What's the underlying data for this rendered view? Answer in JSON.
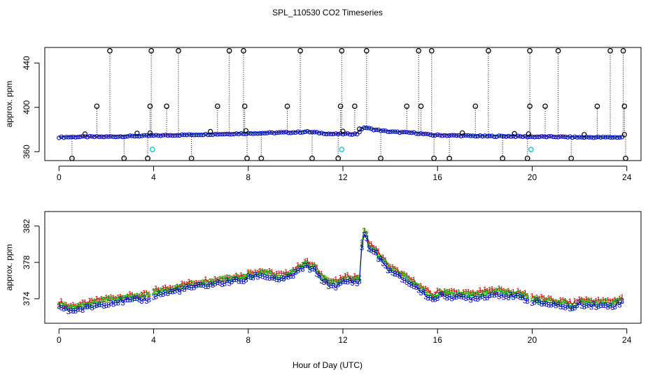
{
  "title": "SPL_110530  CO2 Timeseries",
  "xlabel": "Hour of Day (UTC)",
  "colors": {
    "hourly_1": "#cc0000",
    "hourly_2": "#00cc00",
    "hourly_3": "#0000cc",
    "cyan": "#00cccc",
    "black": "#000000"
  },
  "chart_data": [
    {
      "type": "scatter",
      "panel": "top",
      "title": "SPL_110530  CO2 Timeseries",
      "xlabel": "",
      "ylabel": "approx. ppm",
      "xlim": [
        -0.6,
        24.6
      ],
      "ylim": [
        352,
        454
      ],
      "x_ticks": [
        0,
        4,
        8,
        12,
        16,
        20,
        24
      ],
      "y_ticks": [
        360,
        400,
        440
      ],
      "baseline": [
        [
          0,
          373
        ],
        [
          1,
          373.5
        ],
        [
          2,
          373.5
        ],
        [
          3,
          374
        ],
        [
          4,
          374.5
        ],
        [
          5,
          375
        ],
        [
          6,
          375.5
        ],
        [
          7,
          376
        ],
        [
          8,
          376.5
        ],
        [
          9,
          377
        ],
        [
          10,
          377.5
        ],
        [
          10.5,
          378
        ],
        [
          11,
          377
        ],
        [
          11.5,
          376
        ],
        [
          12,
          376
        ],
        [
          12.6,
          376
        ],
        [
          12.9,
          382
        ],
        [
          13.3,
          380
        ],
        [
          14,
          378
        ],
        [
          15,
          377
        ],
        [
          15.8,
          375
        ],
        [
          17,
          374.5
        ],
        [
          18,
          374
        ],
        [
          19,
          374
        ],
        [
          20,
          373.5
        ],
        [
          21,
          373.5
        ],
        [
          22,
          373
        ],
        [
          23,
          373
        ],
        [
          23.8,
          373
        ]
      ],
      "spikes_high": [
        2.15,
        3.9,
        5.05,
        7.2,
        7.8,
        10.2,
        11.95,
        13.0,
        15.2,
        15.75,
        18.15,
        19.9,
        21.1,
        23.3,
        23.85
      ],
      "spikes_mid": [
        1.6,
        3.85,
        4.55,
        6.7,
        7.85,
        9.65,
        11.9,
        12.5,
        14.7,
        15.3,
        17.6,
        19.9,
        20.55,
        22.75,
        23.9
      ],
      "spikes_low": [
        0.55,
        2.75,
        3.75,
        5.6,
        7.95,
        8.55,
        10.7,
        11.8,
        13.6,
        15.85,
        16.5,
        18.75,
        19.8,
        21.65,
        23.95
      ],
      "points_small": [
        1.1,
        3.3,
        3.85,
        6.4,
        7.9,
        12.0,
        12.7,
        17.05,
        19.25,
        19.85,
        22.2,
        23.9
      ],
      "cyan_points": [
        [
          3.95,
          362
        ],
        [
          11.95,
          362
        ],
        [
          19.95,
          362
        ]
      ],
      "high_value": 451,
      "mid_value": 401,
      "low_value": 354
    },
    {
      "type": "line",
      "panel": "bottom",
      "xlabel": "Hour of Day (UTC)",
      "ylabel": "approx. ppm",
      "xlim": [
        -0.6,
        24.6
      ],
      "ylim": [
        371.3,
        383.6
      ],
      "x_ticks": [
        0,
        4,
        8,
        12,
        16,
        20,
        24
      ],
      "y_ticks": [
        374,
        378,
        382
      ],
      "series": [
        {
          "name": "1",
          "symbol": "1",
          "color": "#cc0000",
          "offset": 0.55
        },
        {
          "name": "2",
          "symbol": "2",
          "color": "#00cc00",
          "offset": 0.3
        },
        {
          "name": "3",
          "symbol": "3",
          "color": "#0000cc",
          "offset": 0
        }
      ],
      "profile": [
        [
          0.05,
          373.1
        ],
        [
          0.4,
          372.7
        ],
        [
          0.8,
          372.8
        ],
        [
          1.2,
          373
        ],
        [
          1.6,
          373.3
        ],
        [
          2,
          373.5
        ],
        [
          2.5,
          373.7
        ],
        [
          3,
          373.8
        ],
        [
          3.5,
          373.9
        ],
        [
          3.85,
          374
        ],
        [
          4.05,
          374.4
        ],
        [
          4.5,
          374.6
        ],
        [
          5,
          374.9
        ],
        [
          5.5,
          375.2
        ],
        [
          6,
          375.4
        ],
        [
          6.5,
          375.6
        ],
        [
          7,
          375.8
        ],
        [
          7.5,
          376
        ],
        [
          7.85,
          376
        ],
        [
          8.05,
          376.4
        ],
        [
          8.5,
          376.6
        ],
        [
          9,
          376.3
        ],
        [
          9.5,
          376.1
        ],
        [
          10,
          376.8
        ],
        [
          10.4,
          377.6
        ],
        [
          10.8,
          377.1
        ],
        [
          11,
          376.4
        ],
        [
          11.4,
          375.5
        ],
        [
          11.8,
          375.4
        ],
        [
          12.05,
          375.9
        ],
        [
          12.5,
          375.9
        ],
        [
          12.7,
          375.9
        ],
        [
          12.8,
          379.5
        ],
        [
          12.95,
          381.9
        ],
        [
          13.05,
          379.5
        ],
        [
          13.3,
          379.3
        ],
        [
          13.6,
          378.2
        ],
        [
          14,
          377
        ],
        [
          14.5,
          376.2
        ],
        [
          15,
          375.4
        ],
        [
          15.4,
          374.6
        ],
        [
          15.8,
          373.9
        ],
        [
          16.05,
          374.3
        ],
        [
          16.5,
          374.3
        ],
        [
          17,
          374.1
        ],
        [
          17.5,
          374.1
        ],
        [
          18,
          374.3
        ],
        [
          18.5,
          374.5
        ],
        [
          19,
          374.3
        ],
        [
          19.5,
          374.1
        ],
        [
          19.85,
          373.9
        ],
        [
          20.05,
          373.7
        ],
        [
          20.5,
          373.5
        ],
        [
          21,
          373.2
        ],
        [
          21.4,
          373.2
        ],
        [
          21.7,
          372.9
        ],
        [
          22,
          373.4
        ],
        [
          22.5,
          373.3
        ],
        [
          23,
          373.2
        ],
        [
          23.5,
          373.3
        ],
        [
          23.75,
          373.6
        ]
      ],
      "gaps": [
        [
          3.9,
          4.0
        ],
        [
          7.9,
          8.0
        ],
        [
          11.9,
          12.0
        ],
        [
          15.9,
          16.0
        ],
        [
          19.9,
          20.0
        ]
      ],
      "point_step": 0.1
    }
  ]
}
